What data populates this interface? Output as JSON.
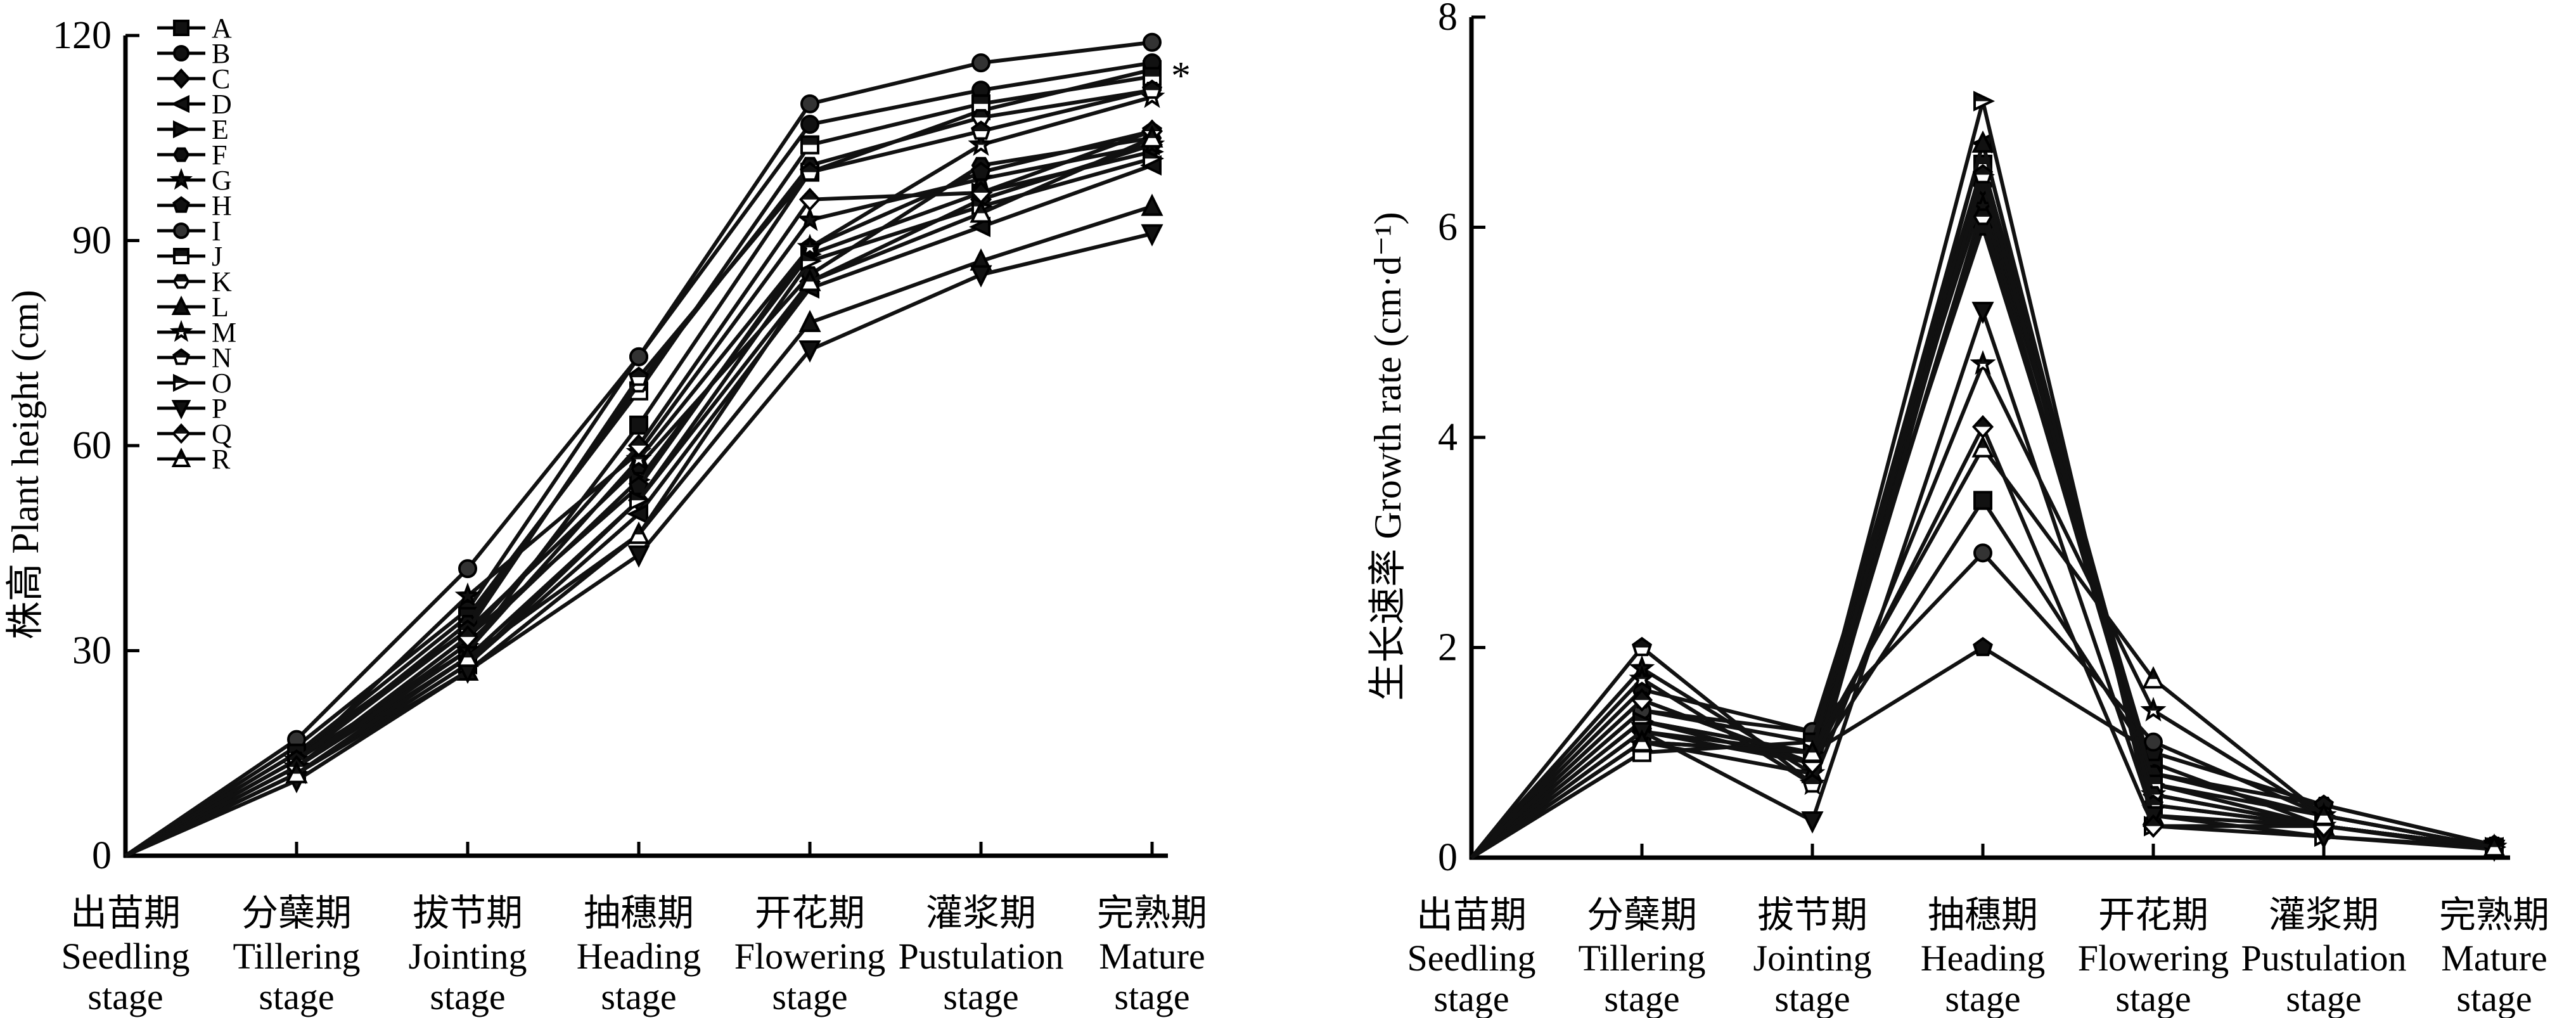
{
  "chart_data": [
    {
      "type": "line",
      "title": "",
      "xlabel": "",
      "ylabel": "株高 Plant height (cm)",
      "ylim": [
        0,
        120
      ],
      "yticks": [
        0,
        30,
        60,
        90,
        120
      ],
      "categories": [
        {
          "zh": "出苗期",
          "en1": "Seedling",
          "en2": "stage"
        },
        {
          "zh": "分蘖期",
          "en1": "Tillering",
          "en2": "stage"
        },
        {
          "zh": "拔节期",
          "en1": "Jointing",
          "en2": "stage"
        },
        {
          "zh": "抽穗期",
          "en1": "Heading",
          "en2": "stage"
        },
        {
          "zh": "开花期",
          "en1": "Flowering",
          "en2": "stage"
        },
        {
          "zh": "灌浆期",
          "en1": "Pustulation",
          "en2": "stage"
        },
        {
          "zh": "完熟期",
          "en1": "Mature",
          "en2": "stage"
        }
      ],
      "legend_position": "top-left",
      "annotation": "*",
      "series": [
        {
          "name": "A",
          "marker": "square-filled",
          "values": [
            0,
            14,
            30,
            63,
            100,
            109,
            115
          ]
        },
        {
          "name": "B",
          "marker": "circle-filled",
          "values": [
            0,
            16,
            36,
            73,
            107,
            112,
            116
          ]
        },
        {
          "name": "C",
          "marker": "diamond-filled",
          "values": [
            0,
            13,
            29,
            52,
            84,
            96,
            104
          ]
        },
        {
          "name": "D",
          "marker": "triangle-left-filled",
          "values": [
            0,
            12,
            28,
            50,
            83,
            92,
            101
          ]
        },
        {
          "name": "E",
          "marker": "triangle-right-filled",
          "values": [
            0,
            13,
            31,
            55,
            88,
            97,
            103
          ]
        },
        {
          "name": "F",
          "marker": "hexagon-filled",
          "values": [
            0,
            15,
            33,
            57,
            85,
            101,
            105
          ]
        },
        {
          "name": "G",
          "marker": "star-filled",
          "values": [
            0,
            14,
            38,
            59,
            93,
            99,
            104
          ]
        },
        {
          "name": "H",
          "marker": "pentagon-filled",
          "values": [
            0,
            13,
            32,
            54,
            89,
            100,
            106
          ]
        },
        {
          "name": "I",
          "marker": "circle-shaded",
          "values": [
            0,
            17,
            42,
            73,
            110,
            116,
            119
          ]
        },
        {
          "name": "J",
          "marker": "square-half",
          "values": [
            0,
            15,
            35,
            68,
            104,
            110,
            114
          ]
        },
        {
          "name": "K",
          "marker": "hexagon-half",
          "values": [
            0,
            14,
            34,
            69,
            101,
            108,
            112
          ]
        },
        {
          "name": "L",
          "marker": "triangle-up-filled",
          "values": [
            0,
            12,
            27,
            47,
            78,
            87,
            95
          ]
        },
        {
          "name": "M",
          "marker": "star-half",
          "values": [
            0,
            13,
            30,
            58,
            89,
            104,
            111
          ]
        },
        {
          "name": "N",
          "marker": "pentagon-half",
          "values": [
            0,
            14,
            33,
            70,
            100,
            106,
            112
          ]
        },
        {
          "name": "O",
          "marker": "triangle-right-half",
          "values": [
            0,
            12,
            28,
            52,
            87,
            95,
            102
          ]
        },
        {
          "name": "P",
          "marker": "triangle-down-filled",
          "values": [
            0,
            11,
            27,
            44,
            74,
            85,
            91
          ]
        },
        {
          "name": "Q",
          "marker": "diamond-half",
          "values": [
            0,
            13,
            32,
            60,
            96,
            97,
            106
          ]
        },
        {
          "name": "R",
          "marker": "triangle-up-half",
          "values": [
            0,
            12,
            29,
            47,
            84,
            94,
            105
          ]
        }
      ]
    },
    {
      "type": "line",
      "title": "",
      "xlabel": "",
      "ylabel": "生长速率 Growth rate (cm·d⁻¹)",
      "ylim": [
        0,
        8
      ],
      "yticks": [
        0,
        2,
        4,
        6,
        8
      ],
      "categories": [
        {
          "zh": "出苗期",
          "en1": "Seedling",
          "en2": "stage"
        },
        {
          "zh": "分蘖期",
          "en1": "Tillering",
          "en2": "stage"
        },
        {
          "zh": "拔节期",
          "en1": "Jointing",
          "en2": "stage"
        },
        {
          "zh": "抽穗期",
          "en1": "Heading",
          "en2": "stage"
        },
        {
          "zh": "开花期",
          "en1": "Flowering",
          "en2": "stage"
        },
        {
          "zh": "灌浆期",
          "en1": "Pustulation",
          "en2": "stage"
        },
        {
          "zh": "完熟期",
          "en1": "Mature",
          "en2": "stage"
        }
      ],
      "series": [
        {
          "name": "A",
          "values": [
            0,
            1.3,
            0.9,
            3.4,
            0.9,
            0.3,
            0.1
          ]
        },
        {
          "name": "B",
          "values": [
            0,
            1.6,
            1.2,
            6.3,
            0.8,
            0.4,
            0.1
          ]
        },
        {
          "name": "C",
          "values": [
            0,
            1.2,
            0.9,
            6.4,
            0.6,
            0.3,
            0.1
          ]
        },
        {
          "name": "D",
          "values": [
            0,
            1.1,
            1.0,
            6.8,
            0.5,
            0.3,
            0.1
          ]
        },
        {
          "name": "E",
          "values": [
            0,
            1.3,
            1.0,
            6.5,
            0.7,
            0.4,
            0.1
          ]
        },
        {
          "name": "F",
          "values": [
            0,
            1.4,
            1.1,
            6.0,
            0.8,
            0.5,
            0.12
          ]
        },
        {
          "name": "G",
          "values": [
            0,
            1.8,
            0.8,
            6.2,
            0.6,
            0.3,
            0.1
          ]
        },
        {
          "name": "H",
          "values": [
            0,
            1.2,
            1.0,
            2.0,
            1.0,
            0.5,
            0.12
          ]
        },
        {
          "name": "I",
          "values": [
            0,
            1.4,
            1.2,
            2.9,
            1.1,
            0.4,
            0.1
          ]
        },
        {
          "name": "J",
          "values": [
            0,
            1.0,
            1.1,
            6.6,
            0.7,
            0.3,
            0.08
          ]
        },
        {
          "name": "K",
          "values": [
            0,
            1.5,
            0.9,
            6.1,
            0.6,
            0.3,
            0.1
          ]
        },
        {
          "name": "L",
          "values": [
            0,
            1.1,
            0.8,
            6.8,
            0.4,
            0.3,
            0.1
          ]
        },
        {
          "name": "M",
          "values": [
            0,
            1.7,
            0.7,
            4.7,
            1.4,
            0.4,
            0.1
          ]
        },
        {
          "name": "N",
          "values": [
            0,
            2.0,
            0.7,
            6.5,
            0.5,
            0.3,
            0.1
          ]
        },
        {
          "name": "O",
          "values": [
            0,
            1.3,
            1.0,
            7.2,
            0.3,
            0.2,
            0.1
          ]
        },
        {
          "name": "P",
          "values": [
            0,
            1.2,
            0.35,
            5.2,
            0.4,
            0.2,
            0.08
          ]
        },
        {
          "name": "Q",
          "values": [
            0,
            1.5,
            0.9,
            4.1,
            0.3,
            0.3,
            0.1
          ]
        },
        {
          "name": "R",
          "values": [
            0,
            1.1,
            1.0,
            3.9,
            1.7,
            0.4,
            0.1
          ]
        }
      ]
    }
  ]
}
